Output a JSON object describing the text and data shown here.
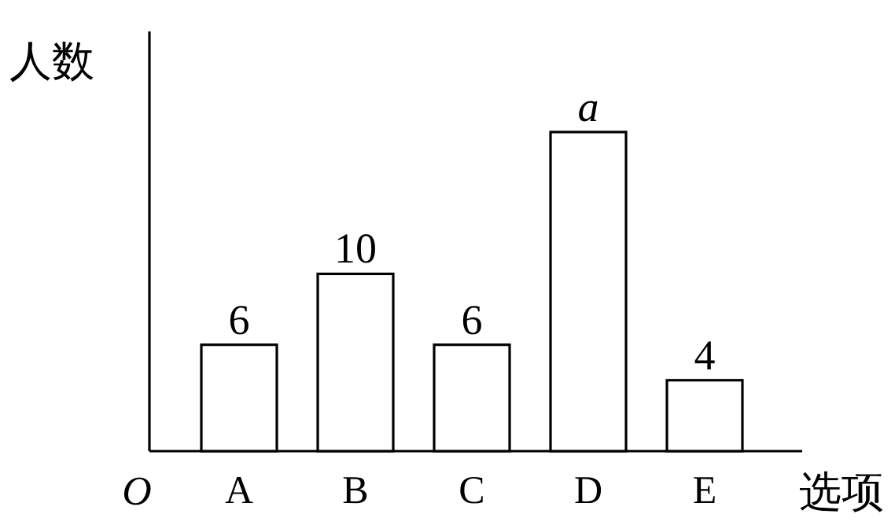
{
  "chart_data": {
    "type": "bar",
    "ylabel": "人数",
    "xlabel": "选项",
    "annotations": [
      "O"
    ],
    "categories": [
      "A",
      "B",
      "C",
      "D",
      "E"
    ],
    "values": [
      6,
      10,
      6,
      18,
      4
    ],
    "value_labels": [
      "6",
      "10",
      "6",
      "a",
      "4"
    ],
    "color": "#ffffff"
  }
}
